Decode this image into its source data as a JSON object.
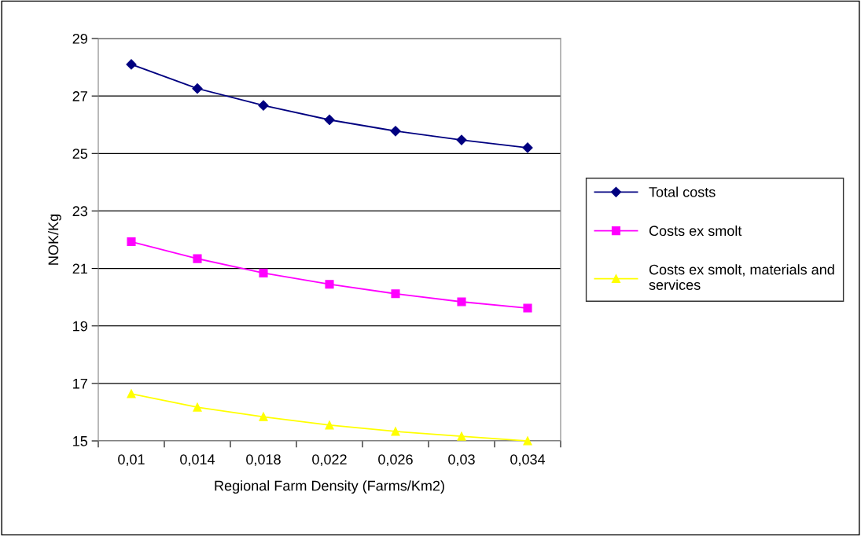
{
  "chart_data": {
    "type": "line",
    "xlabel": "Regional Farm Density (Farms/Km2)",
    "ylabel": "NOK/Kg",
    "categories": [
      "0,01",
      "0,014",
      "0,018",
      "0,022",
      "0,026",
      "0,03",
      "0,034"
    ],
    "series": [
      {
        "name": "Total costs",
        "color": "#000080",
        "marker": "diamond",
        "values": [
          28.1,
          27.26,
          26.67,
          26.17,
          25.78,
          25.47,
          25.2
        ]
      },
      {
        "name": "Costs ex smolt",
        "color": "#ff00ff",
        "marker": "square",
        "values": [
          21.93,
          21.34,
          20.84,
          20.45,
          20.12,
          19.84,
          19.62
        ]
      },
      {
        "name": "Costs ex smolt, materials and services",
        "color": "#ffff00",
        "marker": "triangle",
        "values": [
          16.64,
          16.17,
          15.84,
          15.55,
          15.33,
          15.16,
          15.0
        ]
      }
    ],
    "ylim": [
      15,
      29
    ],
    "yticks": [
      15,
      17,
      19,
      21,
      23,
      25,
      27,
      29
    ],
    "grid": "y",
    "legend": "right",
    "line_style": "solid"
  }
}
